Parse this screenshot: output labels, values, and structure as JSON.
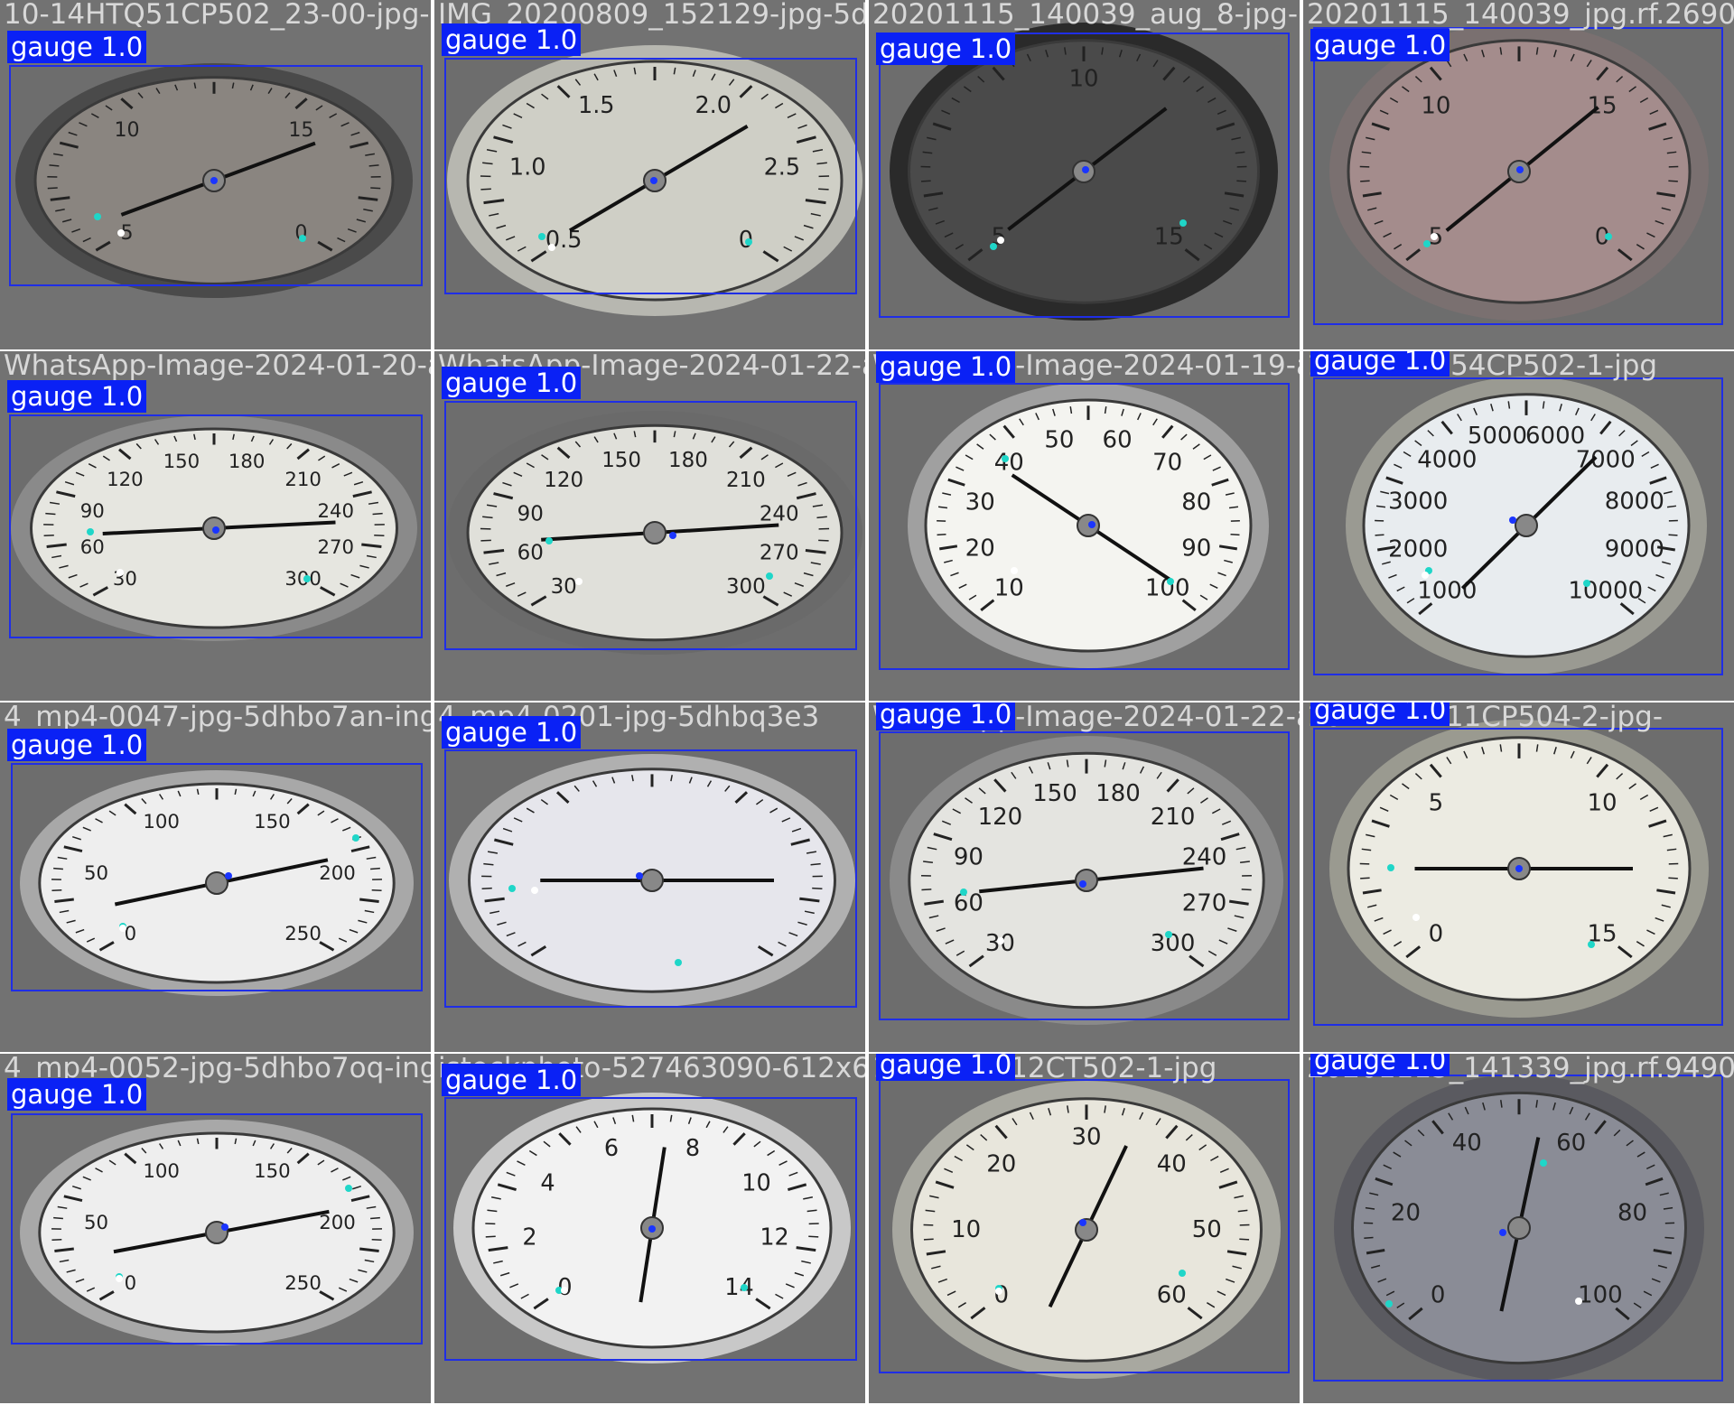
{
  "detection_label": "gauge 1.0",
  "colors": {
    "box": "#1f2ee6",
    "label_bg": "#0a21f5",
    "tile_bg": "#727272",
    "kp_center": "#1a35ff",
    "kp_min": "#1fd6c8",
    "kp_tip": "#ffffff"
  },
  "tiles": [
    {
      "filename": "10-14HTQ51CP502_23-00-jpg-5dhbo7",
      "label": "gauge 1.0",
      "scale": [
        "5",
        "10",
        "15",
        "0"
      ],
      "face": "#8a8580",
      "rim": "#4a4a4a"
    },
    {
      "filename": "IMG_20200809_152129-jpg-5dhbo7",
      "label": "gauge 1.0",
      "scale": [
        "0.5",
        "1.0",
        "1.5",
        "2.0",
        "2.5",
        "0"
      ],
      "face": "#cfcfc6",
      "rim": "#b7b7b0"
    },
    {
      "filename": "20201115_140039_aug_8-jpg-5dhbo",
      "label": "gauge 1.0",
      "scale": [
        "5",
        "10",
        "15"
      ],
      "face": "#4a4a4a",
      "rim": "#2a2a2a"
    },
    {
      "filename": "20201115_140039_jpg.rf.2690",
      "label": "gauge 1.0",
      "scale": [
        "5",
        "10",
        "15",
        "0"
      ],
      "face": "#a48c8c",
      "rim": "#7a7070"
    },
    {
      "filename": "WhatsApp-Image-2024-01-20-at",
      "label": "gauge 1.0",
      "scale": [
        "30",
        "60",
        "90",
        "120",
        "150",
        "180",
        "210",
        "240",
        "270",
        "300"
      ],
      "face": "#e6e6e0",
      "rim": "#8a8a8a"
    },
    {
      "filename": "WhatsApp-Image-2024-01-22-at",
      "label": "gauge 1.0",
      "scale": [
        "30",
        "60",
        "90",
        "120",
        "150",
        "180",
        "210",
        "240",
        "270",
        "300"
      ],
      "face": "#e0e0da",
      "rim": "#6a6a6a"
    },
    {
      "filename": "WhatsApp-Image-2024-01-19-at",
      "label": "gauge 1.0",
      "scale": [
        "10",
        "20",
        "30",
        "40",
        "50",
        "60",
        "70",
        "80",
        "90",
        "100"
      ],
      "face": "#f4f4f0",
      "rim": "#a0a0a0"
    },
    {
      "filename": "10-14HTM54CP502-1-jpg",
      "label": "gauge 1.0",
      "scale": [
        "1000",
        "2000",
        "3000",
        "4000",
        "5000",
        "6000",
        "7000",
        "8000",
        "9000",
        "10000"
      ],
      "face": "#e8ecef",
      "rim": "#9a9a92"
    },
    {
      "filename": "4_mp4-0047-jpg-5dhbo7an-inge",
      "label": "gauge 1.0",
      "scale": [
        "0",
        "50",
        "100",
        "150",
        "200",
        "250"
      ],
      "face": "#eeeeee",
      "rim": "#a8a8a8"
    },
    {
      "filename": "4_mp4-0201-jpg-5dhbq3e3",
      "label": "gauge 1.0",
      "scale": [],
      "face": "#e6e6ec",
      "rim": "#b0b0b0"
    },
    {
      "filename": "WhatsApp-Image-2024-01-22-at",
      "label": "gauge 1.0",
      "scale": [
        "30",
        "60",
        "90",
        "120",
        "150",
        "180",
        "210",
        "240",
        "270",
        "300"
      ],
      "face": "#e4e4e0",
      "rim": "#8a8a8a"
    },
    {
      "filename": "10-14HAV11CP504-2-jpg-",
      "label": "gauge 1.0",
      "scale": [
        "0",
        "5",
        "10",
        "15"
      ],
      "face": "#ecebe2",
      "rim": "#9a9a90"
    },
    {
      "filename": "4_mp4-0052-jpg-5dhbo7oq-inge",
      "label": "gauge 1.0",
      "scale": [
        "0",
        "50",
        "100",
        "150",
        "200",
        "250"
      ],
      "face": "#eeeeee",
      "rim": "#a8a8a8"
    },
    {
      "filename": "istockphoto-527463090-612x612-jpg",
      "label": "gauge 1.0",
      "scale": [
        "0",
        "2",
        "4",
        "6",
        "8",
        "10",
        "12",
        "14"
      ],
      "face": "#f2f2f2",
      "rim": "#c8c8c8"
    },
    {
      "filename": "10-14HTC12CT502-1-jpg",
      "label": "gauge 1.0",
      "scale": [
        "0",
        "10",
        "20",
        "30",
        "40",
        "50",
        "60"
      ],
      "face": "#e8e6dc",
      "rim": "#a8a8a0"
    },
    {
      "filename": "20201115_141339_jpg.rf.9490a",
      "label": "gauge 1.0",
      "scale": [
        "0",
        "20",
        "40",
        "60",
        "80",
        "100"
      ],
      "face": "#8a8c96",
      "rim": "#5a5a60"
    }
  ]
}
